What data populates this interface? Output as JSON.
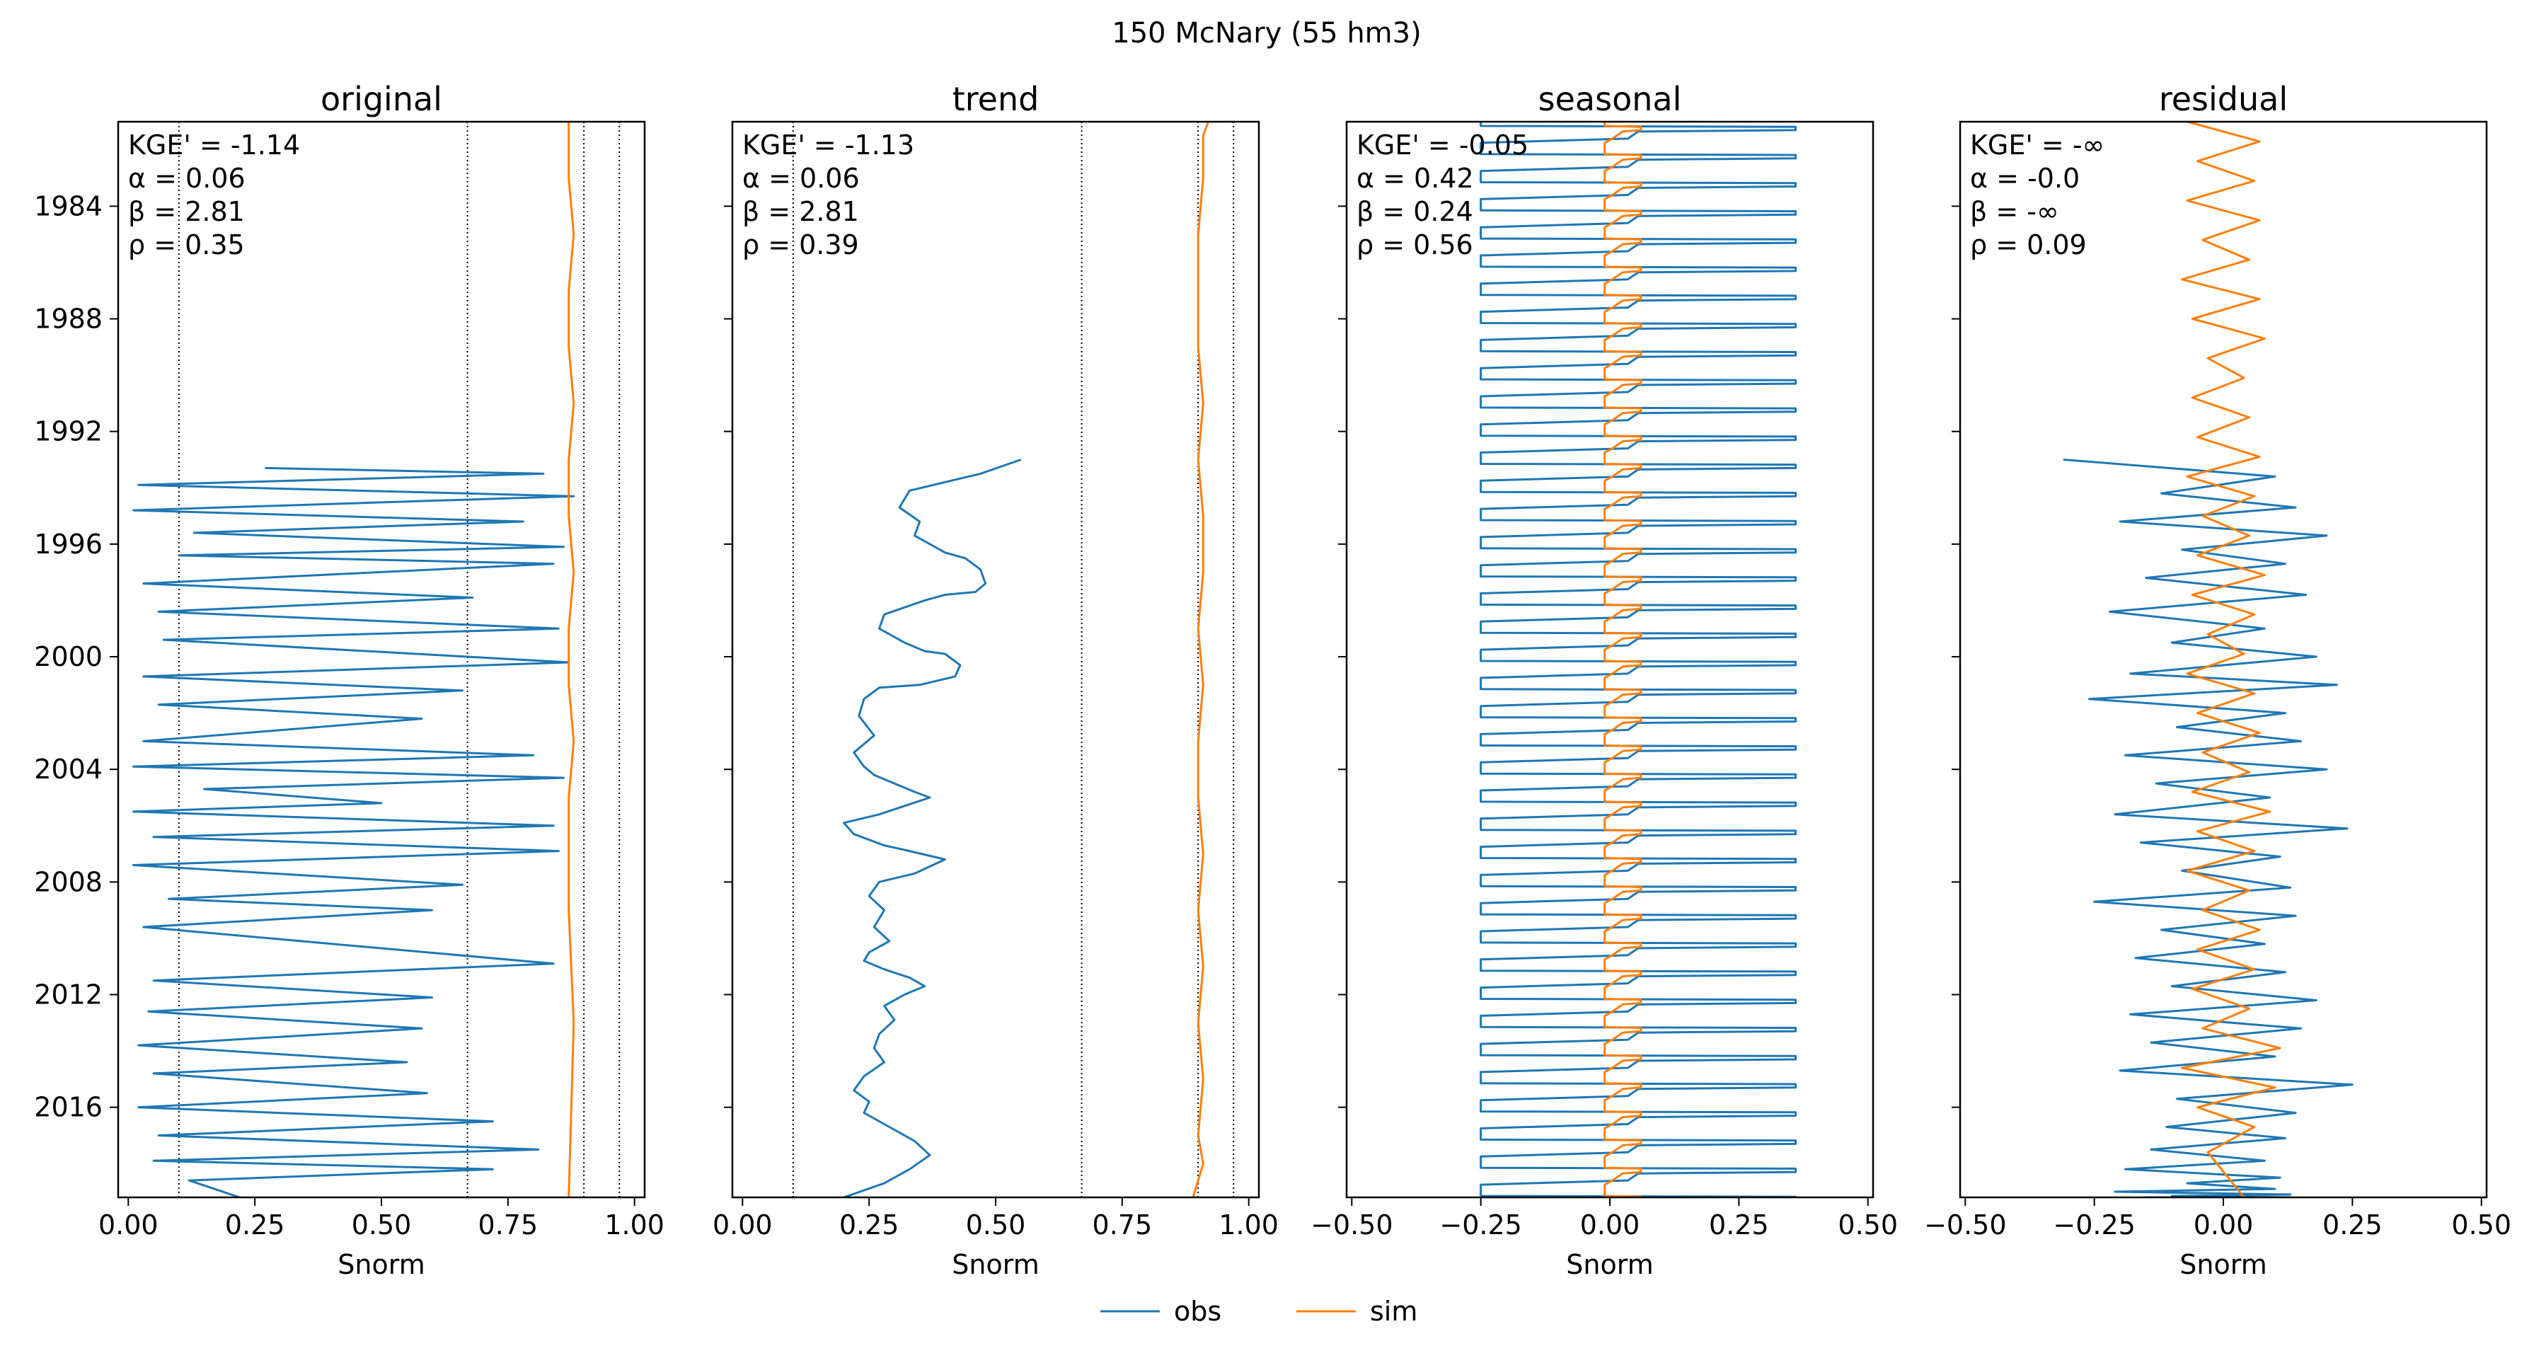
{
  "figure": {
    "suptitle": "150  McNary (55 hm3)",
    "legend": {
      "position": "bottom-center",
      "entries": [
        {
          "label": "obs",
          "color": "#1f77b4"
        },
        {
          "label": "sim",
          "color": "#ff7f0e"
        }
      ]
    }
  },
  "chart_data": [
    {
      "type": "line",
      "title": "original",
      "xlabel": "Snorm",
      "ylabel": "",
      "xlim": [
        -0.02,
        1.02
      ],
      "ylim": [
        1981.0,
        2019.2
      ],
      "y_inverted": true,
      "xticks": [
        "0.00",
        "0.25",
        "0.50",
        "0.75",
        "1.00"
      ],
      "xtick_values": [
        0.0,
        0.25,
        0.5,
        0.75,
        1.0
      ],
      "yticks": [
        "1984",
        "1988",
        "1992",
        "1996",
        "2000",
        "2004",
        "2008",
        "2012",
        "2016"
      ],
      "ytick_values": [
        1984,
        1988,
        1992,
        1996,
        2000,
        2004,
        2008,
        2012,
        2016
      ],
      "ref_lines_x": [
        0.1,
        0.67,
        0.9,
        0.97
      ],
      "stats": {
        "kge": "KGE' = -1.14",
        "alpha": "α = 0.06",
        "beta": "β = 2.81",
        "rho": "ρ = 0.35"
      },
      "series": [
        {
          "name": "obs",
          "color": "#1f77b4",
          "x": [
            0.27,
            0.82,
            0.02,
            0.88,
            0.01,
            0.78,
            0.13,
            0.86,
            0.1,
            0.84,
            0.03,
            0.68,
            0.06,
            0.85,
            0.07,
            0.87,
            0.03,
            0.66,
            0.06,
            0.58,
            0.03,
            0.8,
            0.01,
            0.86,
            0.15,
            0.5,
            0.01,
            0.84,
            0.05,
            0.85,
            0.01,
            0.66,
            0.08,
            0.6,
            0.03,
            0.84,
            0.05,
            0.6,
            0.04,
            0.58,
            0.02,
            0.55,
            0.05,
            0.59,
            0.02,
            0.72,
            0.06,
            0.81,
            0.05,
            0.72,
            0.12,
            0.22
          ],
          "y": [
            1993.3,
            1993.5,
            1993.9,
            1994.3,
            1994.8,
            1995.2,
            1995.6,
            1996.1,
            1996.4,
            1996.7,
            1997.4,
            1997.9,
            1998.4,
            1999.0,
            1999.4,
            2000.2,
            2000.7,
            2001.2,
            2001.7,
            2002.2,
            2003.0,
            2003.5,
            2003.9,
            2004.3,
            2004.7,
            2005.2,
            2005.5,
            2006.0,
            2006.4,
            2006.9,
            2007.4,
            2008.1,
            2008.6,
            2009.0,
            2009.6,
            2010.9,
            2011.5,
            2012.1,
            2012.6,
            2013.2,
            2013.8,
            2014.4,
            2014.8,
            2015.5,
            2016.0,
            2016.5,
            2017.0,
            2017.5,
            2017.9,
            2018.2,
            2018.6,
            2019.2
          ]
        },
        {
          "name": "sim",
          "color": "#ff7f0e",
          "x": [
            0.87,
            0.87,
            0.88,
            0.87,
            0.87,
            0.88,
            0.87,
            0.87,
            0.88,
            0.87,
            0.87,
            0.88,
            0.87,
            0.87,
            0.87,
            0.88,
            0.87
          ],
          "y": [
            1981.0,
            1983.0,
            1985.0,
            1987.0,
            1989.0,
            1991.0,
            1993.0,
            1995.0,
            1997.0,
            1999.0,
            2001.0,
            2003.0,
            2005.0,
            2007.0,
            2009.0,
            2013.0,
            2019.2
          ]
        }
      ]
    },
    {
      "type": "line",
      "title": "trend",
      "xlabel": "Snorm",
      "ylabel": "",
      "xlim": [
        -0.02,
        1.02
      ],
      "ylim": [
        1981.0,
        2019.2
      ],
      "y_inverted": true,
      "xticks": [
        "0.00",
        "0.25",
        "0.50",
        "0.75",
        "1.00"
      ],
      "xtick_values": [
        0.0,
        0.25,
        0.5,
        0.75,
        1.0
      ],
      "yticks": [
        "1984",
        "1988",
        "1992",
        "1996",
        "2000",
        "2004",
        "2008",
        "2012",
        "2016"
      ],
      "ytick_values": [
        1984,
        1988,
        1992,
        1996,
        2000,
        2004,
        2008,
        2012,
        2016
      ],
      "ref_lines_x": [
        0.1,
        0.67,
        0.9,
        0.97
      ],
      "stats": {
        "kge": "KGE' = -1.13",
        "alpha": "α = 0.06",
        "beta": "β = 2.81",
        "rho": "ρ = 0.39"
      },
      "series": [
        {
          "name": "obs",
          "color": "#1f77b4",
          "x": [
            0.55,
            0.47,
            0.33,
            0.31,
            0.35,
            0.34,
            0.38,
            0.4,
            0.44,
            0.47,
            0.48,
            0.46,
            0.4,
            0.36,
            0.28,
            0.27,
            0.32,
            0.36,
            0.4,
            0.43,
            0.42,
            0.35,
            0.27,
            0.24,
            0.23,
            0.26,
            0.22,
            0.24,
            0.26,
            0.3,
            0.34,
            0.37,
            0.32,
            0.27,
            0.2,
            0.22,
            0.28,
            0.33,
            0.4,
            0.34,
            0.27,
            0.25,
            0.28,
            0.26,
            0.29,
            0.25,
            0.24,
            0.28,
            0.33,
            0.36,
            0.32,
            0.28,
            0.3,
            0.27,
            0.26,
            0.28,
            0.24,
            0.22,
            0.25,
            0.24,
            0.29,
            0.34,
            0.37,
            0.33,
            0.28,
            0.2
          ],
          "y": [
            1993.0,
            1993.5,
            1994.1,
            1994.7,
            1995.2,
            1995.7,
            1996.1,
            1996.3,
            1996.5,
            1996.9,
            1997.4,
            1997.7,
            1997.8,
            1998.0,
            1998.5,
            1999.0,
            1999.5,
            1999.8,
            1999.9,
            2000.3,
            2000.7,
            2001.0,
            2001.1,
            2001.5,
            2002.1,
            2002.8,
            2003.4,
            2003.9,
            2004.2,
            2004.5,
            2004.8,
            2005.0,
            2005.3,
            2005.6,
            2005.9,
            2006.3,
            2006.7,
            2006.9,
            2007.2,
            2007.7,
            2008.0,
            2008.5,
            2009.0,
            2009.6,
            2010.1,
            2010.5,
            2010.8,
            2011.1,
            2011.4,
            2011.7,
            2012.0,
            2012.4,
            2012.9,
            2013.4,
            2013.9,
            2014.4,
            2014.9,
            2015.4,
            2015.8,
            2016.2,
            2016.7,
            2017.2,
            2017.7,
            2018.2,
            2018.7,
            2019.2
          ]
        },
        {
          "name": "sim",
          "color": "#ff7f0e",
          "x": [
            0.92,
            0.91,
            0.91,
            0.9,
            0.9,
            0.9,
            0.91,
            0.9,
            0.91,
            0.91,
            0.9,
            0.91,
            0.9,
            0.9,
            0.91,
            0.9,
            0.91,
            0.9,
            0.91,
            0.9,
            0.91,
            0.89
          ],
          "y": [
            1981.0,
            1981.5,
            1983.0,
            1985.0,
            1987.0,
            1989.0,
            1991.0,
            1993.0,
            1995.0,
            1997.0,
            1999.0,
            2001.0,
            2003.0,
            2005.0,
            2007.0,
            2009.0,
            2011.0,
            2013.0,
            2015.0,
            2017.0,
            2018.0,
            2019.2
          ]
        }
      ]
    },
    {
      "type": "line",
      "title": "seasonal",
      "xlabel": "Snorm",
      "ylabel": "",
      "xlim": [
        -0.51,
        0.51
      ],
      "ylim": [
        1981.0,
        2019.2
      ],
      "y_inverted": true,
      "xticks": [
        "−0.50",
        "−0.25",
        "0.00",
        "0.25",
        "0.50"
      ],
      "xtick_values": [
        -0.5,
        -0.25,
        0.0,
        0.25,
        0.5
      ],
      "yticks": [
        "1984",
        "1988",
        "1992",
        "1996",
        "2000",
        "2004",
        "2008",
        "2012",
        "2016"
      ],
      "ytick_values": [
        1984,
        1988,
        1992,
        1996,
        2000,
        2004,
        2008,
        2012,
        2016
      ],
      "ref_lines_x": [],
      "stats": {
        "kge": "KGE' = -0.05",
        "alpha": "α = 0.42",
        "beta": "β = 0.24",
        "rho": "ρ = 0.56"
      },
      "pattern": {
        "obs": {
          "low": -0.25,
          "high": 0.36
        },
        "sim": {
          "low": -0.01,
          "high": 0.06
        },
        "period_years": 1,
        "start_year": 1981
      },
      "series": [
        {
          "name": "obs",
          "color": "#1f77b4",
          "x": [
            -0.25,
            0.36
          ],
          "y": [
            1981.0,
            2019.2
          ]
        },
        {
          "name": "sim",
          "color": "#ff7f0e",
          "x": [
            -0.01,
            0.06
          ],
          "y": [
            1981.0,
            2019.2
          ]
        }
      ]
    },
    {
      "type": "line",
      "title": "residual",
      "xlabel": "Snorm",
      "ylabel": "",
      "xlim": [
        -0.51,
        0.51
      ],
      "ylim": [
        1981.0,
        2019.2
      ],
      "y_inverted": true,
      "xticks": [
        "−0.50",
        "−0.25",
        "0.00",
        "0.25",
        "0.50"
      ],
      "xtick_values": [
        -0.5,
        -0.25,
        0.0,
        0.25,
        0.5
      ],
      "yticks": [
        "1984",
        "1988",
        "1992",
        "1996",
        "2000",
        "2004",
        "2008",
        "2012",
        "2016"
      ],
      "ytick_values": [
        1984,
        1988,
        1992,
        1996,
        2000,
        2004,
        2008,
        2012,
        2016
      ],
      "ref_lines_x": [],
      "stats": {
        "kge": "KGE' = -∞",
        "alpha": "α = -0.0",
        "beta": "β = -∞",
        "rho": "ρ = 0.09"
      },
      "series": [
        {
          "name": "obs",
          "color": "#1f77b4",
          "x": [
            -0.31,
            0.1,
            -0.12,
            0.14,
            -0.2,
            0.2,
            -0.08,
            0.12,
            -0.15,
            0.16,
            -0.22,
            0.08,
            -0.1,
            0.18,
            -0.18,
            0.22,
            -0.26,
            0.12,
            -0.09,
            0.15,
            -0.19,
            0.2,
            -0.13,
            0.09,
            -0.21,
            0.24,
            -0.16,
            0.11,
            -0.08,
            0.13,
            -0.25,
            0.14,
            -0.12,
            0.08,
            -0.17,
            0.12,
            -0.1,
            0.18,
            -0.18,
            0.15,
            -0.14,
            0.1,
            -0.2,
            0.25,
            -0.09,
            0.14,
            -0.11,
            0.12,
            -0.14,
            0.08,
            -0.19,
            0.11,
            -0.07,
            0.1,
            -0.21,
            0.13,
            -0.1,
            0.12,
            -0.15,
            0.07,
            -0.12,
            0.1,
            -0.08,
            0.13
          ],
          "y": [
            1993.0,
            1993.6,
            1994.2,
            1994.7,
            1995.2,
            1995.7,
            1996.2,
            1996.7,
            1997.2,
            1997.8,
            1998.4,
            1999.0,
            1999.5,
            2000.0,
            2000.6,
            2001.0,
            2001.5,
            2002.0,
            2002.5,
            2003.0,
            2003.5,
            2004.0,
            2004.5,
            2005.0,
            2005.6,
            2006.1,
            2006.6,
            2007.1,
            2007.6,
            2008.2,
            2008.7,
            2009.2,
            2009.7,
            2010.2,
            2010.7,
            2011.2,
            2011.7,
            2012.2,
            2012.7,
            2013.2,
            2013.7,
            2014.2,
            2014.7,
            2015.2,
            2015.7,
            2016.2,
            2016.7,
            2017.1,
            2017.5,
            2017.9,
            2018.2,
            2018.5,
            2018.7,
            2018.9,
            2019.0,
            2019.1,
            2019.15,
            2019.2,
            2019.2,
            2019.2,
            2019.2,
            2019.2,
            2019.2,
            2019.2
          ]
        },
        {
          "name": "sim",
          "color": "#ff7f0e",
          "x": [
            -0.07,
            0.07,
            -0.05,
            0.06,
            -0.07,
            0.07,
            -0.04,
            0.05,
            -0.08,
            0.07,
            -0.06,
            0.08,
            -0.03,
            0.04,
            -0.06,
            0.05,
            -0.05,
            0.07,
            -0.07,
            0.06,
            -0.04,
            0.05,
            -0.05,
            0.08,
            -0.06,
            0.06,
            -0.03,
            0.04,
            -0.07,
            0.06,
            -0.05,
            0.07,
            -0.04,
            0.05,
            -0.06,
            0.09,
            -0.05,
            0.06,
            -0.07,
            0.05,
            -0.04,
            0.07,
            -0.05,
            0.06,
            -0.06,
            0.05,
            -0.04,
            0.11,
            -0.08,
            0.1,
            -0.05,
            0.06,
            -0.03,
            0.04
          ],
          "y": [
            1981.0,
            1981.7,
            1982.4,
            1983.1,
            1983.8,
            1984.5,
            1985.2,
            1985.9,
            1986.6,
            1987.3,
            1988.0,
            1988.7,
            1989.4,
            1990.1,
            1990.8,
            1991.5,
            1992.2,
            1992.9,
            1993.6,
            1994.3,
            1995.0,
            1995.7,
            1996.4,
            1997.1,
            1997.8,
            1998.5,
            1999.2,
            1999.9,
            2000.6,
            2001.3,
            2002.0,
            2002.7,
            2003.4,
            2004.1,
            2004.8,
            2005.5,
            2006.2,
            2006.9,
            2007.6,
            2008.3,
            2009.0,
            2009.7,
            2010.4,
            2011.1,
            2011.8,
            2012.5,
            2013.2,
            2013.9,
            2014.6,
            2015.3,
            2016.0,
            2016.7,
            2017.6,
            2019.2
          ]
        }
      ]
    }
  ]
}
